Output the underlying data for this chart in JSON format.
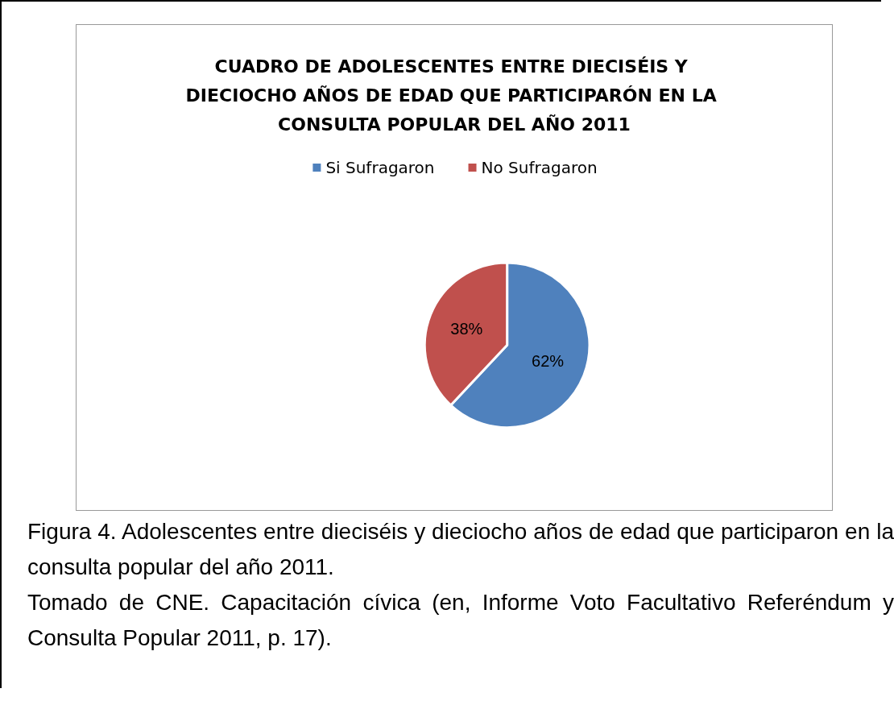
{
  "chart_data": {
    "type": "pie",
    "title": "CUADRO DE ADOLESCENTES ENTRE DIECISÉIS Y DIECIOCHO AÑOS DE EDAD QUE PARTICIPARÓN EN LA CONSULTA POPULAR DEL AÑO 2011",
    "categories": [
      "Si Sufragaron",
      "No Sufragaron"
    ],
    "values": [
      62,
      38
    ],
    "colors": [
      "#4f81bd",
      "#c0504d"
    ],
    "value_labels": [
      "62%",
      "38%"
    ],
    "legend": "top",
    "annotations": [
      "Figura 4. Adolescentes entre dieciséis y dieciocho años de edad que participaron en la consulta popular del año 2011.",
      "Tomado de CNE. Capacitación cívica (en, Informe Voto Facultativo Referéndum  y Consulta Popular 2011, p. 17)."
    ]
  }
}
